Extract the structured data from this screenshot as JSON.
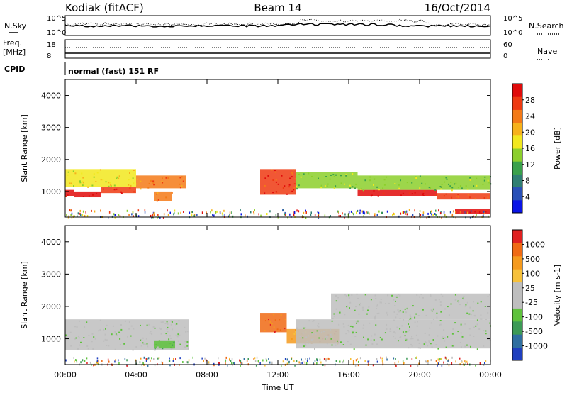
{
  "header": {
    "station": "Kodiak (fitACF)",
    "beam": "Beam 14",
    "date": "16/Oct/2014"
  },
  "ancillary": {
    "nsky_label": "N.Sky",
    "nsearch_label": "N.Search",
    "freq_label_top": "Freq.",
    "freq_label_bottom": "[MHz]",
    "nave_label": "Nave",
    "cpid_label": "CPID",
    "cpid_text": "normal (fast) 151 RF",
    "noise_ticks": [
      "10^5",
      "10^0"
    ],
    "freq_ticks": [
      "18",
      "8"
    ],
    "nave_ticks": [
      "60",
      "0"
    ]
  },
  "chart_data": [
    {
      "type": "heatmap",
      "name": "power-panel",
      "ylabel": "Slant Range [km]",
      "xlabel": "",
      "ylim": [
        200,
        4500
      ],
      "yticks": [
        1000,
        2000,
        3000,
        4000
      ],
      "xlim": [
        0,
        24
      ],
      "xticks": [
        "00:00",
        "04:00",
        "08:00",
        "12:00",
        "16:00",
        "20:00",
        "00:00"
      ],
      "colorbar": {
        "label": "Power [dB]",
        "ticks": [
          "4",
          "8",
          "12",
          "16",
          "20",
          "24",
          "28"
        ],
        "colors": [
          "#0a14e6",
          "#2950b8",
          "#2f7f73",
          "#3aa14b",
          "#8ccf2c",
          "#f2e81f",
          "#f7b21b",
          "#f47a17",
          "#ee3a12",
          "#e00b0b"
        ]
      },
      "regions": [
        {
          "t0": 0.0,
          "t1": 0.5,
          "r0": 850,
          "r1": 1050,
          "level": 9
        },
        {
          "t0": 0.5,
          "t1": 2.0,
          "r0": 820,
          "r1": 1000,
          "level": 9
        },
        {
          "t0": 2.0,
          "t1": 4.0,
          "r0": 950,
          "r1": 1150,
          "level": 8
        },
        {
          "t0": 4.0,
          "t1": 6.8,
          "r0": 1100,
          "r1": 1500,
          "level": 7
        },
        {
          "t0": 0.0,
          "t1": 4.0,
          "r0": 1150,
          "r1": 1700,
          "level": 5
        },
        {
          "t0": 5.0,
          "t1": 6.0,
          "r0": 700,
          "r1": 1000,
          "level": 7
        },
        {
          "t0": 11.0,
          "t1": 13.0,
          "r0": 900,
          "r1": 1700,
          "level": 8
        },
        {
          "t0": 13.0,
          "t1": 16.5,
          "r0": 1100,
          "r1": 1600,
          "level": 4
        },
        {
          "t0": 16.5,
          "t1": 21.0,
          "r0": 850,
          "r1": 1050,
          "level": 9
        },
        {
          "t0": 21.0,
          "t1": 24.0,
          "r0": 750,
          "r1": 950,
          "level": 8
        },
        {
          "t0": 16.5,
          "t1": 24.0,
          "r0": 1050,
          "r1": 1500,
          "level": 4
        },
        {
          "t0": 22.0,
          "t1": 24.0,
          "r0": 300,
          "r1": 450,
          "level": 9
        }
      ]
    },
    {
      "type": "heatmap",
      "name": "velocity-panel",
      "ylabel": "Slant Range [km]",
      "xlabel": "Time UT",
      "ylim": [
        200,
        4500
      ],
      "yticks": [
        1000,
        2000,
        3000,
        4000
      ],
      "xlim": [
        0,
        24
      ],
      "xticks": [
        "00:00",
        "04:00",
        "08:00",
        "12:00",
        "16:00",
        "20:00",
        "00:00"
      ],
      "colorbar": {
        "label": "Velocity [m s-1]",
        "ticks": [
          "1000",
          "500",
          "100",
          "25",
          "-25",
          "-100",
          "-500",
          "-1000"
        ],
        "colors": [
          "#1f3fbf",
          "#2f6fa0",
          "#3c9a56",
          "#5ec23c",
          "#bebebe",
          "#bebebe",
          "#f7c13a",
          "#f59a1d",
          "#f06a14",
          "#e02020"
        ]
      },
      "regions": [
        {
          "t0": 0.0,
          "t1": 7.0,
          "r0": 650,
          "r1": 1600,
          "level": 4
        },
        {
          "t0": 5.0,
          "t1": 6.2,
          "r0": 700,
          "r1": 950,
          "level": 3
        },
        {
          "t0": 11.0,
          "t1": 12.5,
          "r0": 1200,
          "r1": 1800,
          "level": 8
        },
        {
          "t0": 12.5,
          "t1": 15.5,
          "r0": 850,
          "r1": 1300,
          "level": 7
        },
        {
          "t0": 13.0,
          "t1": 24.0,
          "r0": 700,
          "r1": 1600,
          "level": 4
        },
        {
          "t0": 15.0,
          "t1": 24.0,
          "r0": 1600,
          "r1": 2400,
          "level": 4
        }
      ]
    }
  ]
}
